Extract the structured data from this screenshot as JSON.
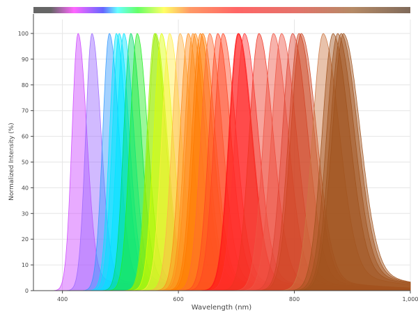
{
  "chart_data": {
    "type": "area",
    "title": "",
    "xlabel": "Wavelength (nm)",
    "ylabel": "Normalized Intensity (%)",
    "xlim": [
      350,
      1000
    ],
    "ylim": [
      0,
      100
    ],
    "x_ticks": [
      400,
      600,
      800,
      1000
    ],
    "x_tick_labels": [
      "400",
      "600",
      "800",
      "1,000"
    ],
    "y_ticks": [
      0,
      10,
      20,
      30,
      40,
      50,
      60,
      70,
      80,
      90,
      100
    ],
    "y_tick_labels": [
      "0",
      "10",
      "20",
      "30",
      "40",
      "50",
      "60",
      "70",
      "80",
      "90",
      "100"
    ],
    "grid": true,
    "legend": "none",
    "color_bar": {
      "stops": [
        {
          "nm": 350,
          "color": "#666666"
        },
        {
          "nm": 380,
          "color": "#666666"
        },
        {
          "nm": 420,
          "color": "#ff66ff"
        },
        {
          "nm": 470,
          "color": "#6666ff"
        },
        {
          "nm": 495,
          "color": "#66ffff"
        },
        {
          "nm": 530,
          "color": "#66ff66"
        },
        {
          "nm": 575,
          "color": "#ffff66"
        },
        {
          "nm": 620,
          "color": "#ff9966"
        },
        {
          "nm": 700,
          "color": "#ff6666"
        },
        {
          "nm": 800,
          "color": "#e5726a"
        },
        {
          "nm": 900,
          "color": "#b58a66"
        },
        {
          "nm": 1000,
          "color": "#7f6a5a"
        }
      ]
    },
    "series": [
      {
        "peak": 427,
        "color": "#cc44ff"
      },
      {
        "peak": 451,
        "color": "#9966ff"
      },
      {
        "peak": 481,
        "color": "#3399ff"
      },
      {
        "peak": 493,
        "color": "#00e5ff"
      },
      {
        "peak": 498,
        "color": "#00e5ff"
      },
      {
        "peak": 506,
        "color": "#00e5ff"
      },
      {
        "peak": 518,
        "color": "#00dd66"
      },
      {
        "peak": 529,
        "color": "#22ee22"
      },
      {
        "peak": 559,
        "color": "#99ee00"
      },
      {
        "peak": 561,
        "color": "#99ee00"
      },
      {
        "peak": 571,
        "color": "#ddff00"
      },
      {
        "peak": 585,
        "color": "#ffee44"
      },
      {
        "peak": 603,
        "color": "#ffb347"
      },
      {
        "peak": 617,
        "color": "#ff8c1a"
      },
      {
        "peak": 625,
        "color": "#ff8c1a"
      },
      {
        "peak": 629,
        "color": "#ff8c1a"
      },
      {
        "peak": 638,
        "color": "#ff7a00"
      },
      {
        "peak": 642,
        "color": "#ff7a00"
      },
      {
        "peak": 654,
        "color": "#ff6a33"
      },
      {
        "peak": 668,
        "color": "#ff4422"
      },
      {
        "peak": 677,
        "color": "#ff4422"
      },
      {
        "peak": 703,
        "color": "#ff1a1a"
      },
      {
        "peak": 704,
        "color": "#ff1a1a"
      },
      {
        "peak": 714,
        "color": "#ff3333"
      },
      {
        "peak": 739,
        "color": "#ee3322"
      },
      {
        "peak": 764,
        "color": "#ee5544"
      },
      {
        "peak": 778,
        "color": "#ee5544"
      },
      {
        "peak": 797,
        "color": "#dd4433"
      },
      {
        "peak": 808,
        "color": "#cc4422"
      },
      {
        "peak": 812,
        "color": "#cc4422"
      },
      {
        "peak": 850,
        "color": "#cc7744"
      },
      {
        "peak": 867,
        "color": "#a0521d"
      },
      {
        "peak": 875,
        "color": "#a0521d"
      },
      {
        "peak": 881,
        "color": "#a0521d"
      },
      {
        "peak": 885,
        "color": "#a0521d"
      }
    ]
  }
}
